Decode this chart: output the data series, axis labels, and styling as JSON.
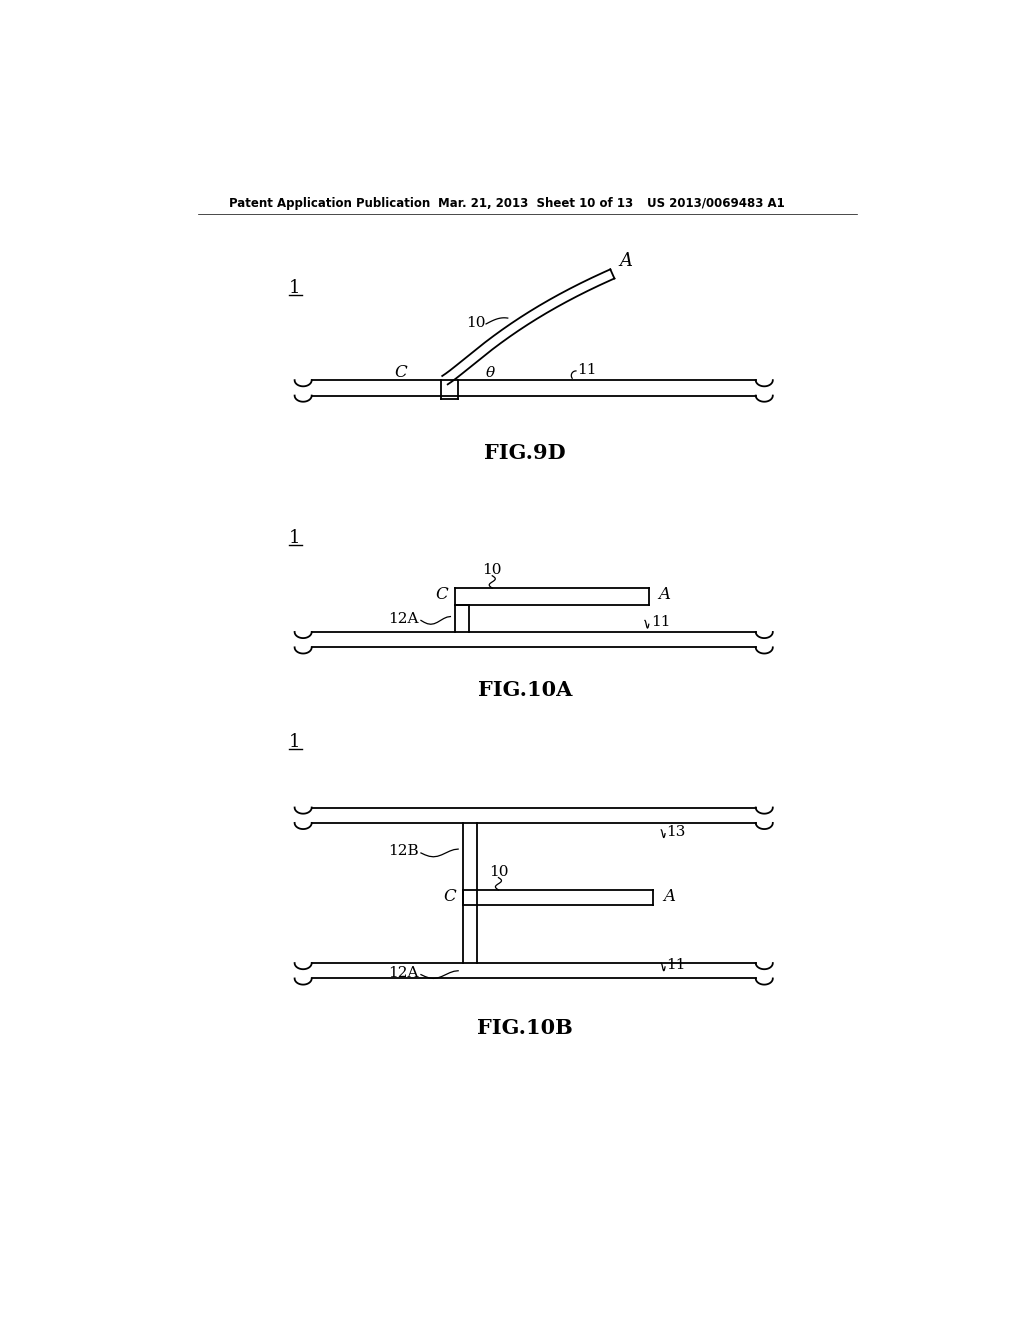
{
  "bg_color": "#ffffff",
  "header_text_left": "Patent Application Publication",
  "header_text_mid": "Mar. 21, 2013  Sheet 10 of 13",
  "header_text_right": "US 2013/0069483 A1",
  "fig9d_label": "FIG.9D",
  "fig10a_label": "FIG.10A",
  "fig10b_label": "FIG.10B",
  "label_1": "1",
  "label_10": "10",
  "label_11": "11",
  "label_C": "C",
  "label_A": "A",
  "label_theta": "θ",
  "label_12A": "12A",
  "label_12B": "12B",
  "label_13": "13"
}
